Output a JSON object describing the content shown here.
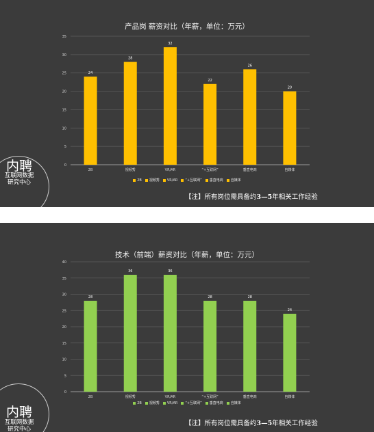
{
  "chart_data": [
    {
      "type": "bar",
      "title": "产品岗 薪资对比（年薪，单位：万元）",
      "categories": [
        "2B",
        "视频秀",
        "VR/AR",
        "“+互联网”",
        "垂直电商",
        "自媒体"
      ],
      "values": [
        24,
        28,
        32,
        22,
        26,
        20
      ],
      "ylim": [
        0,
        35
      ],
      "yticks": [
        0,
        5,
        10,
        15,
        20,
        25,
        30,
        35
      ],
      "color": "#ffc000",
      "legend_position": "bottom",
      "note": {
        "prefix": "【注】所有岗位需具备约",
        "bold": "3—5",
        "suffix": "年相关工作经验"
      }
    },
    {
      "type": "bar",
      "title": "技术（前端）薪资对比（年薪，单位：万元）",
      "categories": [
        "2B",
        "视频秀",
        "VR/AR",
        "“+互联网”",
        "垂直电商",
        "自媒体"
      ],
      "values": [
        28,
        36,
        36,
        28,
        28,
        24
      ],
      "ylim": [
        0,
        40
      ],
      "yticks": [
        0,
        5,
        10,
        15,
        20,
        25,
        30,
        35,
        40
      ],
      "color": "#92d050",
      "legend_position": "bottom",
      "note": {
        "prefix": "【注】所有岗位需具备约",
        "bold": "3—5",
        "suffix": "年相关工作经验"
      }
    }
  ],
  "logo": {
    "main": "内聘",
    "line1": "互联网数据",
    "line2": "研究中心"
  }
}
